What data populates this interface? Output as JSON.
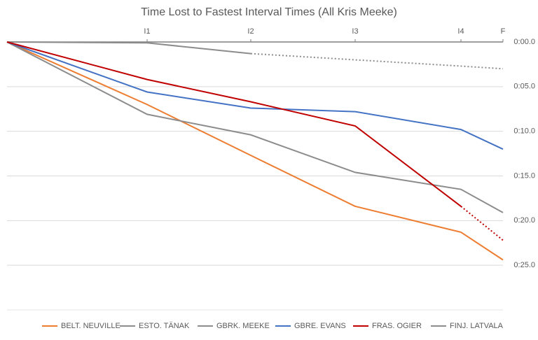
{
  "chart_data": {
    "type": "line",
    "title": "Time Lost to Fastest Interval Times (All Kris Meeke)",
    "x": [
      0,
      2.0,
      3.48,
      4.97,
      6.48,
      7.08
    ],
    "xlim": [
      0,
      7.08
    ],
    "xticks": [
      {
        "value": 2.0,
        "label": "I1"
      },
      {
        "value": 3.48,
        "label": "I2"
      },
      {
        "value": 4.97,
        "label": "I3"
      },
      {
        "value": 6.48,
        "label": "I4"
      },
      {
        "value": 7.08,
        "label": "F"
      }
    ],
    "ylim": [
      0,
      30
    ],
    "y_inverted": true,
    "yticks": [
      {
        "value": 0,
        "label": "0:00.0"
      },
      {
        "value": 5,
        "label": "0:05.0"
      },
      {
        "value": 10,
        "label": "0:10.0"
      },
      {
        "value": 15,
        "label": "0:15.0"
      },
      {
        "value": 20,
        "label": "0:20.0"
      },
      {
        "value": 25,
        "label": "0:25.0"
      }
    ],
    "grid": true,
    "legend": "bottom",
    "series": [
      {
        "name": "BELT. NEUVILLE",
        "color": "#ed7d31",
        "values": [
          0,
          7.0,
          12.7,
          18.4,
          21.3,
          24.4
        ]
      },
      {
        "name": "ESTO. TÄNAK",
        "color": "#8c8c8c",
        "values": [
          0,
          0.1,
          1.3,
          null,
          null,
          null
        ],
        "estimated_values": [
          null,
          null,
          1.3,
          2.0,
          2.7,
          3.0
        ]
      },
      {
        "name": "GBRK. MEEKE",
        "color": "#8c8c8c",
        "values": [
          0,
          8.1,
          10.4,
          14.6,
          16.5,
          19.1
        ]
      },
      {
        "name": "GBRE. EVANS",
        "color": "#4472c4",
        "values": [
          0,
          5.6,
          7.4,
          7.8,
          9.8,
          12.0
        ]
      },
      {
        "name": "FRAS. OGIER",
        "color": "#c00000",
        "values": [
          0,
          4.2,
          6.7,
          9.4,
          18.4,
          null
        ],
        "estimated_values": [
          null,
          null,
          null,
          null,
          18.4,
          22.2
        ]
      },
      {
        "name": "FINJ. LATVALA",
        "color": "#8c8c8c",
        "values": [
          null,
          null,
          null,
          null,
          null,
          null
        ]
      }
    ]
  }
}
